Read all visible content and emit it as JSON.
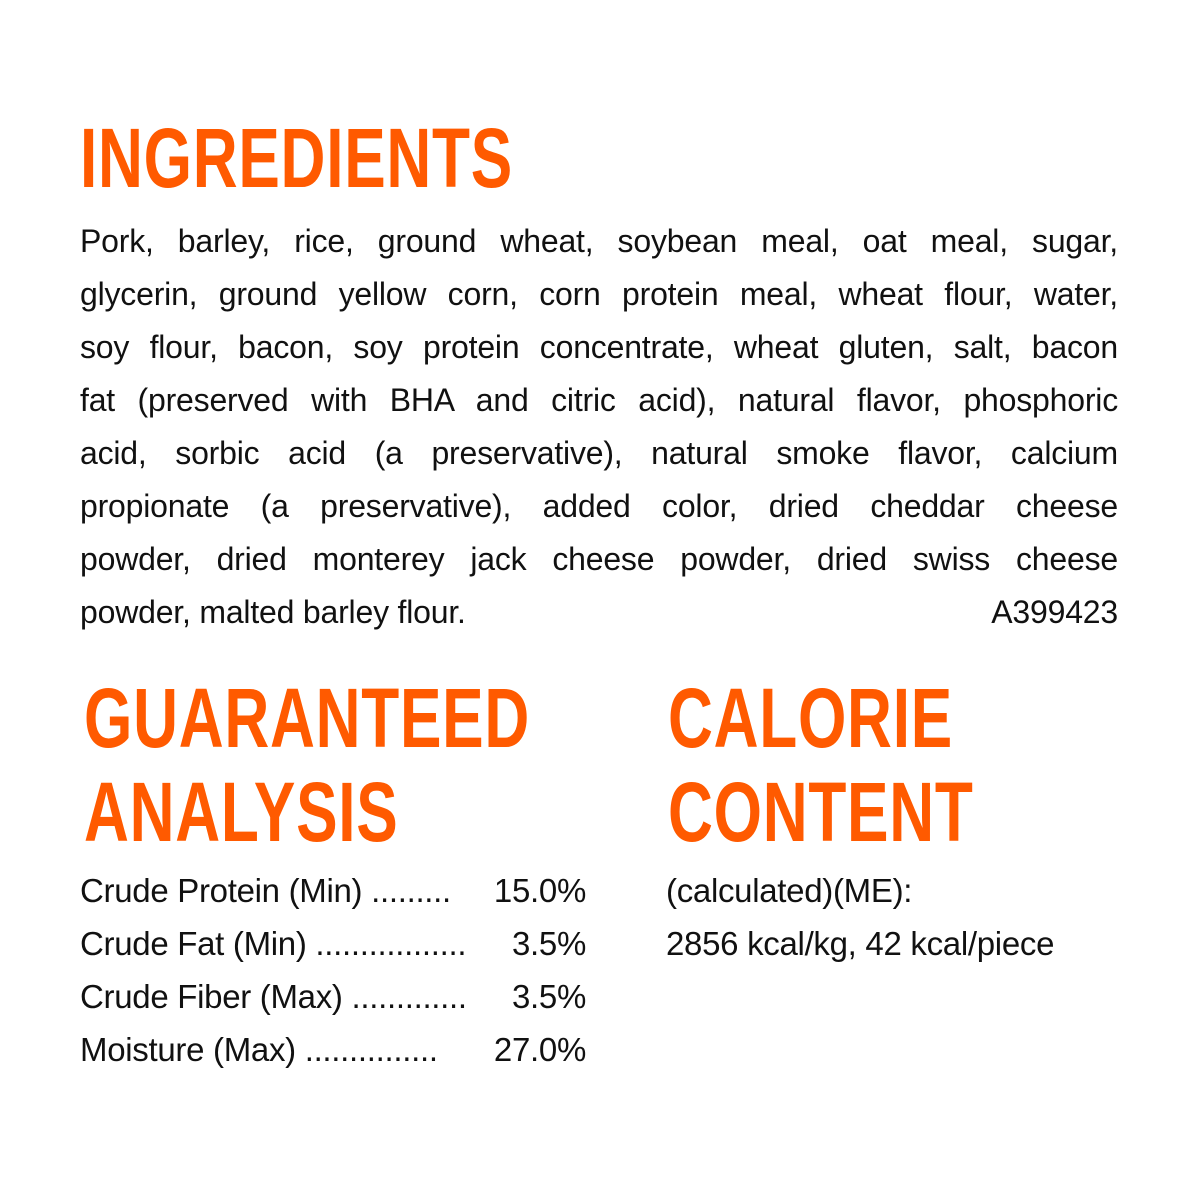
{
  "ingredients": {
    "title": "INGREDIENTS",
    "lines": [
      "Pork, barley, rice, ground wheat, soybean meal, oat meal, sugar,",
      "glycerin, ground yellow corn, corn protein meal, wheat flour, water,",
      "soy flour, bacon, soy protein concentrate, wheat gluten, salt, bacon",
      "fat (preserved with BHA and citric acid), natural flavor, phosphoric",
      "acid, sorbic acid (a preservative), natural smoke flavor, calcium",
      "propionate (a preservative), added color, dried cheddar cheese",
      "powder, dried monterey jack cheese powder, dried swiss cheese"
    ],
    "last_line": "powder, malted barley flour.",
    "code": "A399423"
  },
  "analysis": {
    "title_line1": "GUARANTEED",
    "title_line2": "ANALYSIS",
    "rows": [
      {
        "label": "Crude Protein (Min) .........",
        "value": "15.0%"
      },
      {
        "label": "Crude Fat (Min) .................",
        "value": "3.5%"
      },
      {
        "label": "Crude Fiber (Max) .............",
        "value": "3.5%"
      },
      {
        "label": "Moisture (Max) ...............",
        "value": "27.0%"
      }
    ]
  },
  "calorie": {
    "title_line1": "CALORIE",
    "title_line2": "CONTENT",
    "line1": "(calculated)(ME):",
    "line2": "2856 kcal/kg, 42 kcal/piece"
  },
  "colors": {
    "heading": "#ff5a00",
    "text": "#111111",
    "background": "#ffffff"
  }
}
